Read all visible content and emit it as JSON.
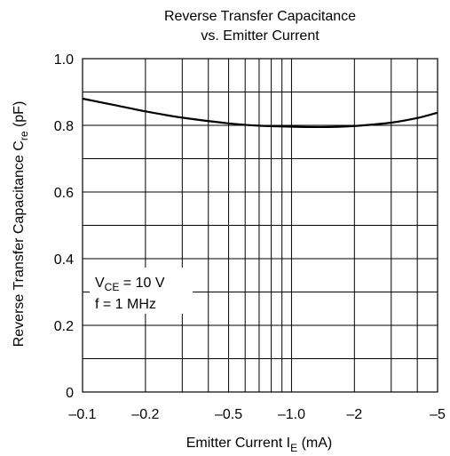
{
  "chart_data": {
    "type": "line",
    "title_line1": "Reverse Transfer Capacitance",
    "title_line2": "vs. Emitter Current",
    "xlabel": {
      "main": "Emitter Current  I",
      "sub": "E",
      "unit": "  (mA)"
    },
    "ylabel": {
      "main": "Reverse Transfer Capacitance C",
      "sub": "re",
      "unit": "  (pF)"
    },
    "x_scale": "log",
    "x_axis_note": "values are negative currents; axis runs by magnitude",
    "xlim": [
      -0.1,
      -5
    ],
    "ylim": [
      0,
      1.0
    ],
    "x_ticks": [
      {
        "value": -0.1,
        "label": "–0.1"
      },
      {
        "value": -0.2,
        "label": "–0.2"
      },
      {
        "value": -0.5,
        "label": "–0.5"
      },
      {
        "value": -1.0,
        "label": "–1.0"
      },
      {
        "value": -2,
        "label": "–2"
      },
      {
        "value": -5,
        "label": "–5"
      }
    ],
    "x_gridlines": [
      -0.1,
      -0.2,
      -0.3,
      -0.4,
      -0.5,
      -0.6,
      -0.7,
      -0.8,
      -0.9,
      -1.0,
      -2,
      -3,
      -4,
      -5
    ],
    "y_ticks": [
      {
        "value": 0,
        "label": "0"
      },
      {
        "value": 0.2,
        "label": "0.2"
      },
      {
        "value": 0.4,
        "label": "0.4"
      },
      {
        "value": 0.6,
        "label": "0.6"
      },
      {
        "value": 0.8,
        "label": "0.8"
      },
      {
        "value": 1.0,
        "label": "1.0"
      }
    ],
    "y_gridlines": [
      0,
      0.1,
      0.2,
      0.3,
      0.4,
      0.5,
      0.6,
      0.7,
      0.8,
      0.9,
      1.0
    ],
    "grid": true,
    "series": [
      {
        "color": "#000000",
        "x": [
          -0.1,
          -0.15,
          -0.2,
          -0.3,
          -0.5,
          -0.7,
          -1.0,
          -1.5,
          -2,
          -3,
          -4,
          -5
        ],
        "y": [
          0.88,
          0.858,
          0.842,
          0.823,
          0.806,
          0.799,
          0.796,
          0.795,
          0.798,
          0.808,
          0.822,
          0.838
        ]
      }
    ],
    "annotation": {
      "line1_main": "V",
      "line1_sub": "CE",
      "line1_rest": " = 10 V",
      "line2": "f = 1 MHz"
    }
  }
}
